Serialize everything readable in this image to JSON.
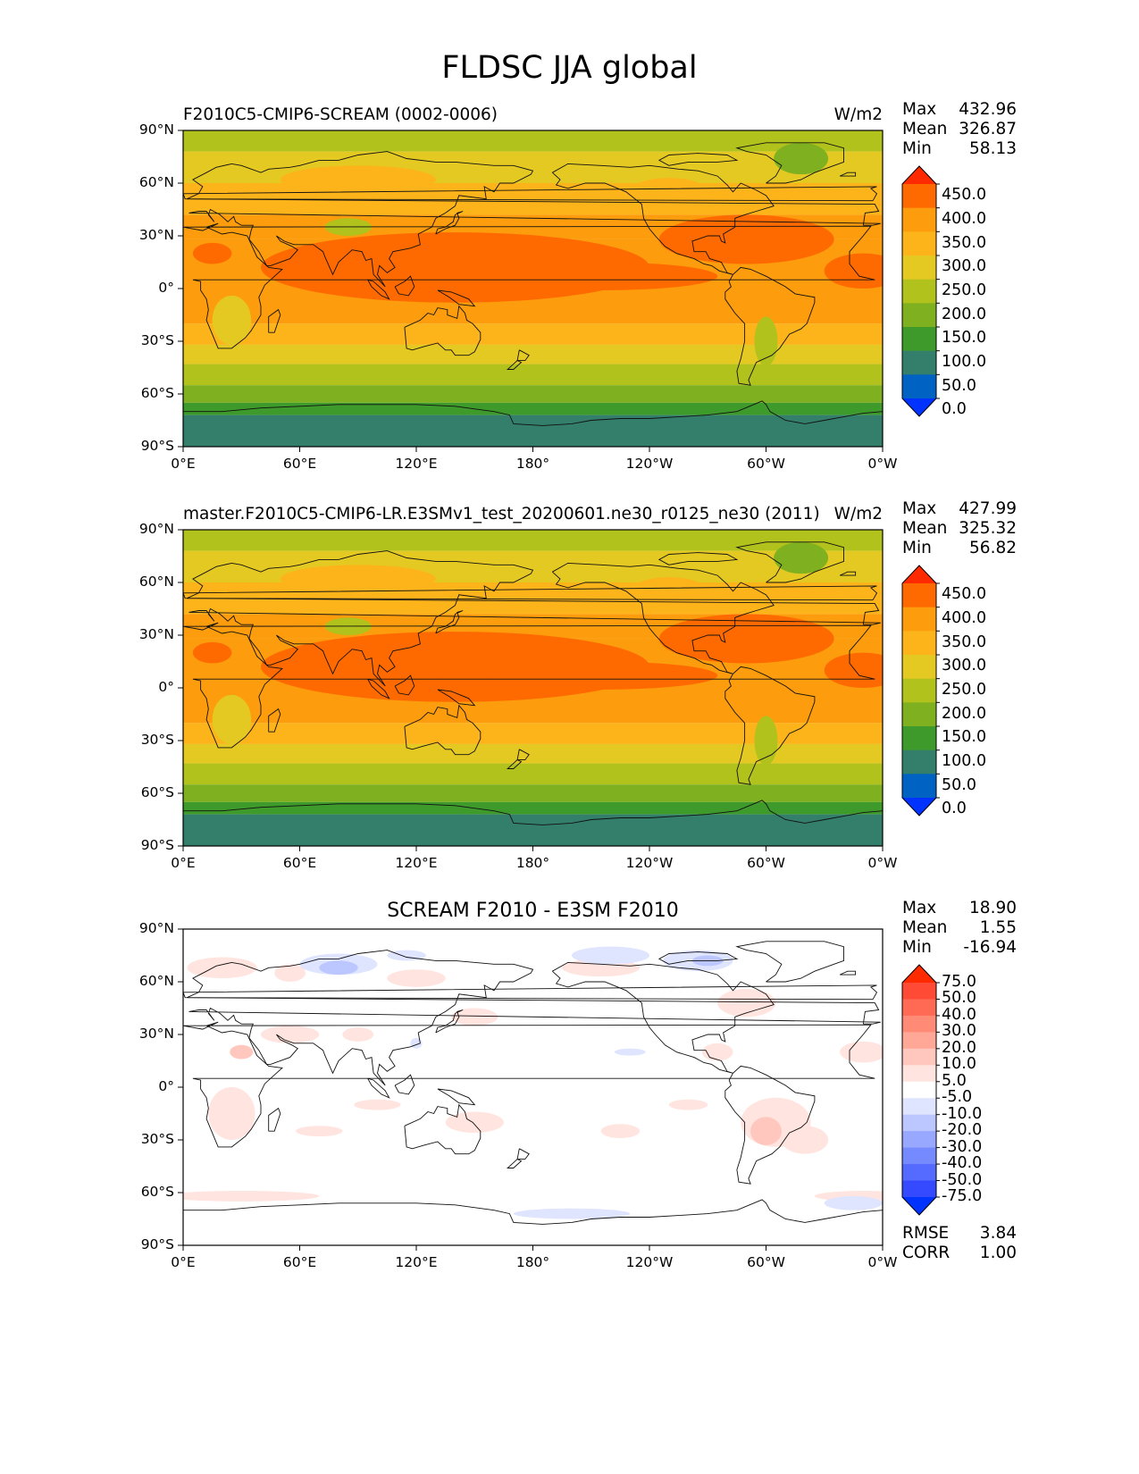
{
  "figure_title": "FLDSC JJA global",
  "axes": {
    "yticks": [
      "90°N",
      "60°N",
      "30°N",
      "0°",
      "30°S",
      "60°S",
      "90°S"
    ],
    "xticks": [
      "0°E",
      "60°E",
      "120°E",
      "180°",
      "120°W",
      "60°W",
      "0°W"
    ]
  },
  "panels": [
    {
      "title_left": "F2010C5-CMIP6-SCREAM (0002-0006)",
      "title_center": "",
      "units": "W/m2",
      "stats": [
        {
          "label": "Max",
          "value": "432.96"
        },
        {
          "label": "Mean",
          "value": "326.87"
        },
        {
          "label": "Min",
          "value": "58.13"
        }
      ],
      "colorbar": {
        "labels": [
          "450.0",
          "400.0",
          "350.0",
          "300.0",
          "250.0",
          "200.0",
          "150.0",
          "100.0",
          "50.0",
          "0.0"
        ],
        "colors": [
          "#ff2a00",
          "#ff6a00",
          "#fd9c0c",
          "#fcb41a",
          "#e5c923",
          "#b2c21d",
          "#7fb01f",
          "#3e9a2b",
          "#337f6b",
          "#0062c2",
          "#0033ff"
        ]
      }
    },
    {
      "title_left": "master.F2010C5-CMIP6-LR.E3SMv1_test_20200601.ne30_r0125_ne30 (2011)",
      "title_center": "",
      "units": "W/m2",
      "stats": [
        {
          "label": "Max",
          "value": "427.99"
        },
        {
          "label": "Mean",
          "value": "325.32"
        },
        {
          "label": "Min",
          "value": "56.82"
        }
      ],
      "colorbar": {
        "labels": [
          "450.0",
          "400.0",
          "350.0",
          "300.0",
          "250.0",
          "200.0",
          "150.0",
          "100.0",
          "50.0",
          "0.0"
        ],
        "colors": [
          "#ff2a00",
          "#ff6a00",
          "#fd9c0c",
          "#fcb41a",
          "#e5c923",
          "#b2c21d",
          "#7fb01f",
          "#3e9a2b",
          "#337f6b",
          "#0062c2",
          "#0033ff"
        ]
      }
    },
    {
      "title_left": "",
      "title_center": "SCREAM F2010 - E3SM F2010",
      "units": "",
      "stats": [
        {
          "label": "Max",
          "value": "18.90"
        },
        {
          "label": "Mean",
          "value": "1.55"
        },
        {
          "label": "Min",
          "value": "-16.94"
        }
      ],
      "colorbar": {
        "labels": [
          "75.0",
          "50.0",
          "40.0",
          "30.0",
          "20.0",
          "10.0",
          "5.0",
          "-5.0",
          "-10.0",
          "-20.0",
          "-30.0",
          "-40.0",
          "-50.0",
          "-75.0"
        ],
        "colors": [
          "#ff2a00",
          "#ff4a35",
          "#ff6a55",
          "#ff8a75",
          "#ffa898",
          "#ffc7bd",
          "#ffe4df",
          "#ffffff",
          "#dfe4ff",
          "#bdc7ff",
          "#98a8ff",
          "#758aff",
          "#556aff",
          "#354aff",
          "#0033ff"
        ]
      },
      "extra_stats": [
        {
          "label": "RMSE",
          "value": "3.84"
        },
        {
          "label": "CORR",
          "value": "1.00"
        }
      ]
    }
  ],
  "fill_colors": {
    "t90": "#337f6b",
    "t120": "#3e9a2b",
    "t180": "#7fb01f",
    "t230": "#b2c21d",
    "t280": "#e5c923",
    "t330": "#fcb41a",
    "t370": "#fd9c0c",
    "t410": "#ff6a00",
    "white": "#ffffff",
    "pink": "#ffe4df",
    "pink2": "#ffc7bd",
    "blue": "#dfe4ff",
    "blue2": "#bdc7ff"
  }
}
